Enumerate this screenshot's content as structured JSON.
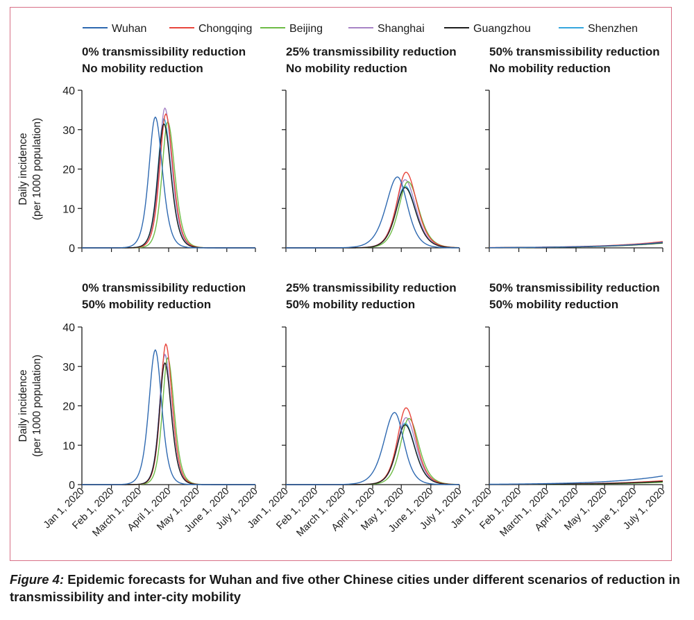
{
  "caption": {
    "figure_label": "Figure 4:",
    "text": " Epidemic forecasts for Wuhan and five other Chinese cities under different scenarios of reduction in transmissibility and inter-city mobility"
  },
  "colors": {
    "Wuhan": "#2d68b0",
    "Chongqing": "#e8453c",
    "Beijing": "#6dbb45",
    "Shanghai": "#a783c6",
    "Guangzhou": "#1c1c1c",
    "Shenzhen": "#34a6de",
    "frame": "#d86f86"
  },
  "legend": [
    "Wuhan",
    "Chongqing",
    "Beijing",
    "Shanghai",
    "Guangzhou",
    "Shenzhen"
  ],
  "y_axis_label": [
    "Daily incidence",
    "(per 1000 population)"
  ],
  "chart_data": [
    {
      "type": "line",
      "title": [
        "0% transmissibility reduction",
        "No mobility reduction"
      ],
      "ylim": [
        0,
        40
      ],
      "yticks": [
        0,
        10,
        20,
        30,
        40
      ],
      "x_ticks": [
        "Jan 1, 2020",
        "Feb 1, 2020",
        "March 1, 2020",
        "April 1, 2020",
        "May 1, 2020",
        "June 1, 2020",
        "July 1, 2020"
      ],
      "series": [
        {
          "name": "Wuhan",
          "peak_date": "2020-03-18",
          "peak_value": 33.2,
          "rise_width_days": 9,
          "fall_width_days": 10
        },
        {
          "name": "Chongqing",
          "peak_date": "2020-03-29",
          "peak_value": 34.0,
          "rise_width_days": 8.5,
          "fall_width_days": 10
        },
        {
          "name": "Beijing",
          "peak_date": "2020-03-31",
          "peak_value": 32.0,
          "rise_width_days": 8,
          "fall_width_days": 10
        },
        {
          "name": "Shanghai",
          "peak_date": "2020-03-28",
          "peak_value": 35.5,
          "rise_width_days": 8,
          "fall_width_days": 10
        },
        {
          "name": "Guangzhou",
          "peak_date": "2020-03-27",
          "peak_value": 31.5,
          "rise_width_days": 8.5,
          "fall_width_days": 10
        },
        {
          "name": "Shenzhen",
          "peak_date": "2020-03-27",
          "peak_value": 32.8,
          "rise_width_days": 8.5,
          "fall_width_days": 10
        }
      ]
    },
    {
      "type": "line",
      "title": [
        "25% transmissibility reduction",
        "No mobility reduction"
      ],
      "ylim": [
        0,
        40
      ],
      "yticks": [
        0,
        10,
        20,
        30,
        40
      ],
      "x_ticks": [
        "Jan 1, 2020",
        "Feb 1, 2020",
        "March 1, 2020",
        "April 1, 2020",
        "May 1, 2020",
        "June 1, 2020",
        "July 1, 2020"
      ],
      "series": [
        {
          "name": "Wuhan",
          "peak_date": "2020-04-27",
          "peak_value": 18.0,
          "rise_width_days": 16,
          "fall_width_days": 14
        },
        {
          "name": "Chongqing",
          "peak_date": "2020-05-06",
          "peak_value": 19.2,
          "rise_width_days": 13,
          "fall_width_days": 15
        },
        {
          "name": "Beijing",
          "peak_date": "2020-05-08",
          "peak_value": 16.8,
          "rise_width_days": 13,
          "fall_width_days": 15
        },
        {
          "name": "Shanghai",
          "peak_date": "2020-05-05",
          "peak_value": 17.3,
          "rise_width_days": 13,
          "fall_width_days": 15
        },
        {
          "name": "Guangzhou",
          "peak_date": "2020-05-05",
          "peak_value": 15.3,
          "rise_width_days": 13,
          "fall_width_days": 15
        },
        {
          "name": "Shenzhen",
          "peak_date": "2020-05-05",
          "peak_value": 15.7,
          "rise_width_days": 13,
          "fall_width_days": 15
        }
      ]
    },
    {
      "type": "line",
      "title": [
        "50% transmissibility reduction",
        "No mobility reduction"
      ],
      "ylim": [
        0,
        40
      ],
      "yticks": [
        0,
        10,
        20,
        30,
        40
      ],
      "x_ticks": [
        "Jan 1, 2020",
        "Feb 1, 2020",
        "March 1, 2020",
        "April 1, 2020",
        "May 1, 2020",
        "June 1, 2020",
        "July 1, 2020"
      ],
      "series": [
        {
          "name": "Wuhan",
          "end_value": 1.4
        },
        {
          "name": "Chongqing",
          "end_value": 1.6
        },
        {
          "name": "Beijing",
          "end_value": 1.2
        },
        {
          "name": "Shanghai",
          "end_value": 1.5
        },
        {
          "name": "Guangzhou",
          "end_value": 1.3
        },
        {
          "name": "Shenzhen",
          "end_value": 1.4
        }
      ]
    },
    {
      "type": "line",
      "title": [
        "0% transmissibility reduction",
        "50% mobility reduction"
      ],
      "ylim": [
        0,
        40
      ],
      "yticks": [
        0,
        10,
        20,
        30,
        40
      ],
      "x_ticks": [
        "Jan 1, 2020",
        "Feb 1, 2020",
        "March 1, 2020",
        "April 1, 2020",
        "May 1, 2020",
        "June 1, 2020",
        "July 1, 2020"
      ],
      "series": [
        {
          "name": "Wuhan",
          "peak_date": "2020-03-18",
          "peak_value": 34.2,
          "rise_width_days": 9,
          "fall_width_days": 9
        },
        {
          "name": "Chongqing",
          "peak_date": "2020-03-29",
          "peak_value": 35.7,
          "rise_width_days": 7.5,
          "fall_width_days": 9
        },
        {
          "name": "Beijing",
          "peak_date": "2020-03-31",
          "peak_value": 32.2,
          "rise_width_days": 7.5,
          "fall_width_days": 9
        },
        {
          "name": "Shanghai",
          "peak_date": "2020-03-28",
          "peak_value": 33.1,
          "rise_width_days": 7.5,
          "fall_width_days": 9
        },
        {
          "name": "Guangzhou",
          "peak_date": "2020-03-28",
          "peak_value": 30.9,
          "rise_width_days": 7.5,
          "fall_width_days": 9
        },
        {
          "name": "Shenzhen",
          "peak_date": "2020-03-28",
          "peak_value": 33.0,
          "rise_width_days": 7.5,
          "fall_width_days": 9
        }
      ]
    },
    {
      "type": "line",
      "title": [
        "25% transmissibility reduction",
        "50% mobility reduction"
      ],
      "ylim": [
        0,
        40
      ],
      "yticks": [
        0,
        10,
        20,
        30,
        40
      ],
      "x_ticks": [
        "Jan 1, 2020",
        "Feb 1, 2020",
        "March 1, 2020",
        "April 1, 2020",
        "May 1, 2020",
        "June 1, 2020",
        "July 1, 2020"
      ],
      "series": [
        {
          "name": "Wuhan",
          "peak_date": "2020-04-24",
          "peak_value": 18.3,
          "rise_width_days": 15,
          "fall_width_days": 13
        },
        {
          "name": "Chongqing",
          "peak_date": "2020-05-06",
          "peak_value": 19.5,
          "rise_width_days": 12,
          "fall_width_days": 14
        },
        {
          "name": "Beijing",
          "peak_date": "2020-05-09",
          "peak_value": 16.8,
          "rise_width_days": 12,
          "fall_width_days": 14
        },
        {
          "name": "Shanghai",
          "peak_date": "2020-05-06",
          "peak_value": 17.0,
          "rise_width_days": 12,
          "fall_width_days": 14
        },
        {
          "name": "Guangzhou",
          "peak_date": "2020-05-05",
          "peak_value": 15.2,
          "rise_width_days": 12,
          "fall_width_days": 14
        },
        {
          "name": "Shenzhen",
          "peak_date": "2020-05-05",
          "peak_value": 15.6,
          "rise_width_days": 12,
          "fall_width_days": 14
        }
      ]
    },
    {
      "type": "line",
      "title": [
        "50% transmissibility reduction",
        "50% mobility reduction"
      ],
      "ylim": [
        0,
        40
      ],
      "yticks": [
        0,
        10,
        20,
        30,
        40
      ],
      "x_ticks": [
        "Jan 1, 2020",
        "Feb 1, 2020",
        "March 1, 2020",
        "April 1, 2020",
        "May 1, 2020",
        "June 1, 2020",
        "July 1, 2020"
      ],
      "series": [
        {
          "name": "Wuhan",
          "end_value": 2.2
        },
        {
          "name": "Chongqing",
          "end_value": 1.0
        },
        {
          "name": "Beijing",
          "end_value": 0.6
        },
        {
          "name": "Shanghai",
          "end_value": 0.9
        },
        {
          "name": "Guangzhou",
          "end_value": 0.8
        },
        {
          "name": "Shenzhen",
          "end_value": 0.8
        }
      ]
    }
  ]
}
